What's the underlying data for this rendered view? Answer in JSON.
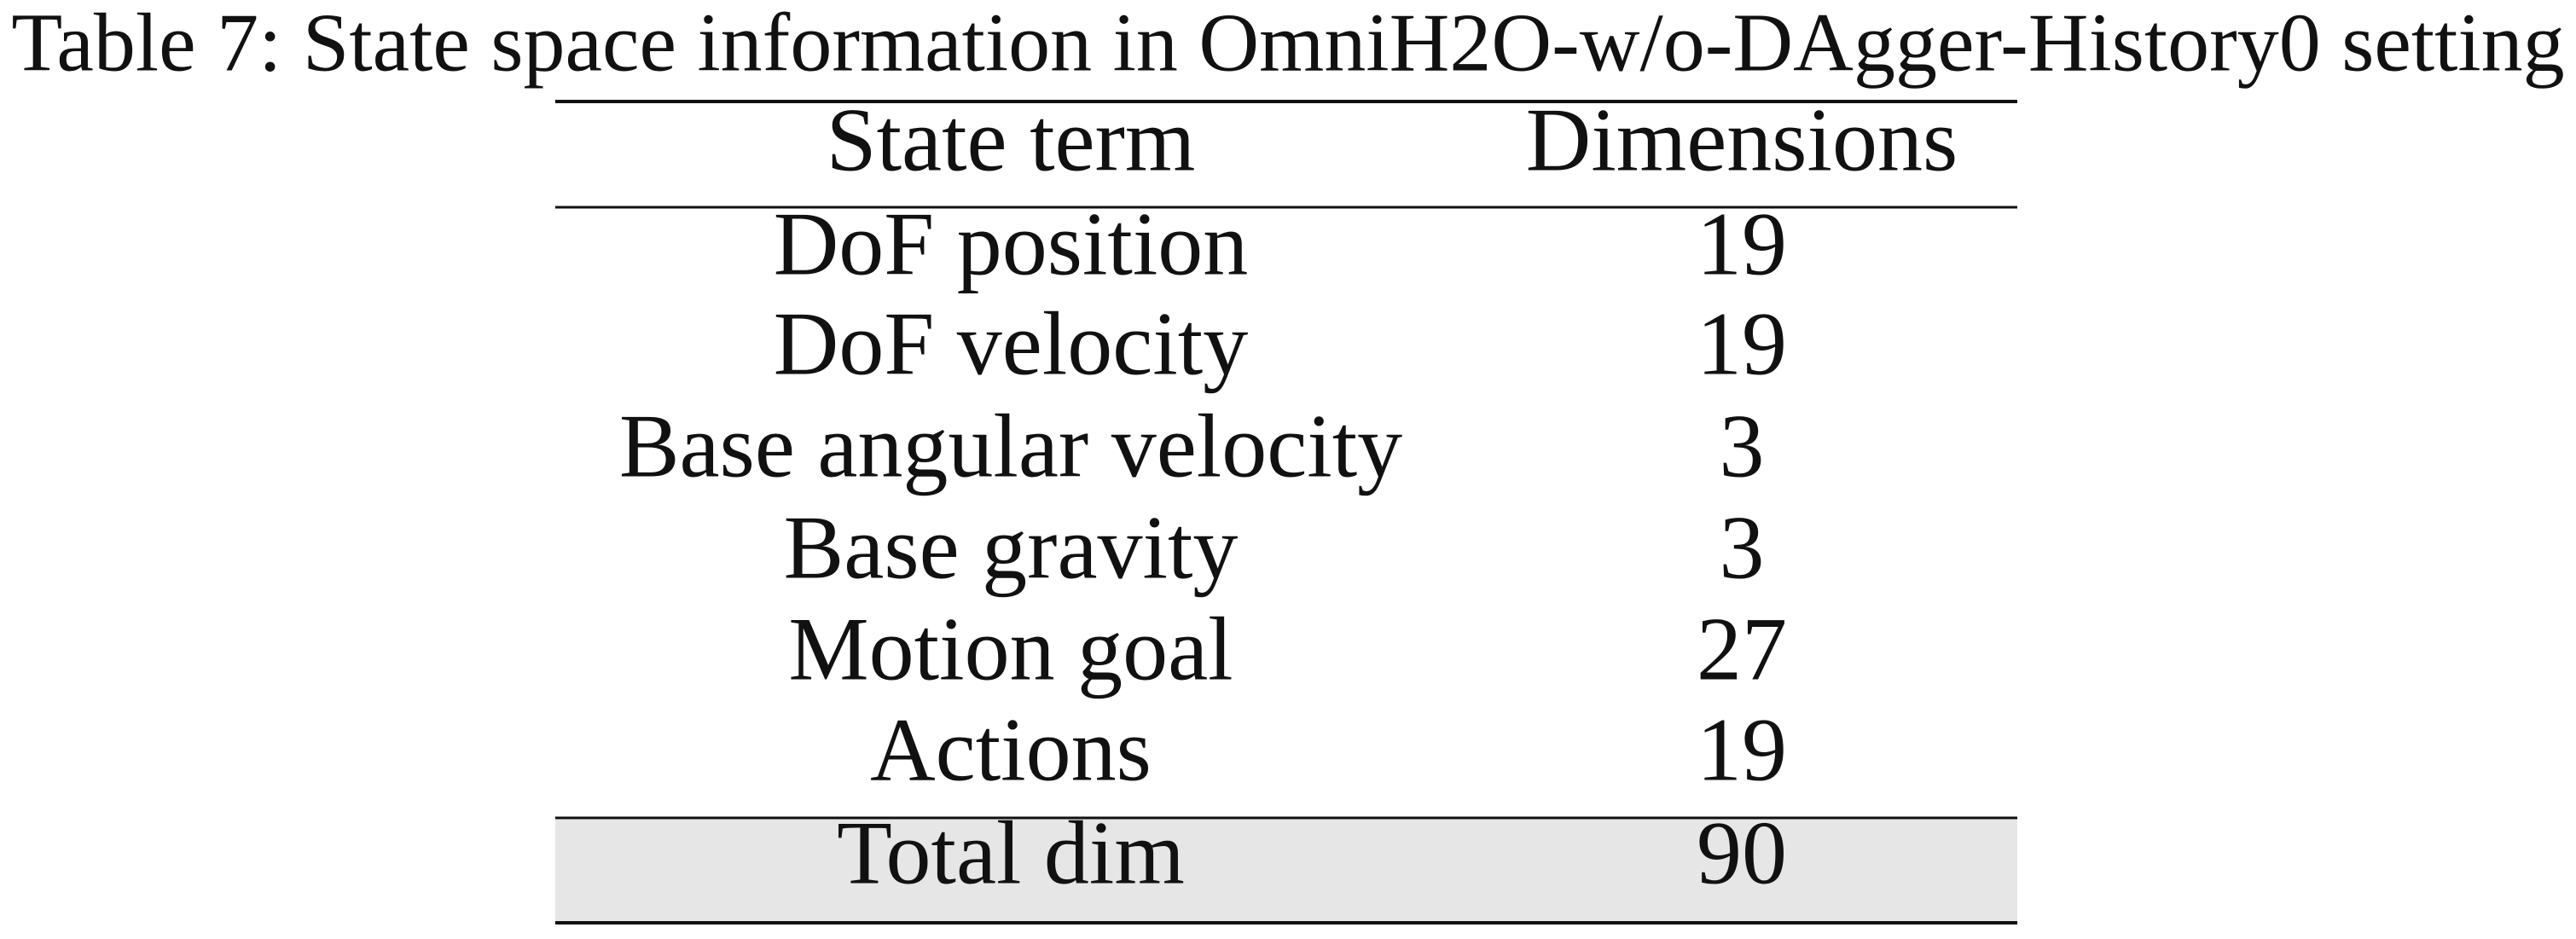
{
  "caption": "Table 7: State space information in OmniH2O-w/o-DAgger-History0 setting",
  "table": {
    "header": [
      "State term",
      "Dimensions"
    ],
    "rows": [
      [
        "DoF position",
        19
      ],
      [
        "DoF velocity",
        19
      ],
      [
        "Base angular velocity",
        3
      ],
      [
        "Base gravity",
        3
      ],
      [
        "Motion goal",
        27
      ],
      [
        "Actions",
        19
      ]
    ],
    "total": [
      "Total dim",
      90
    ]
  }
}
